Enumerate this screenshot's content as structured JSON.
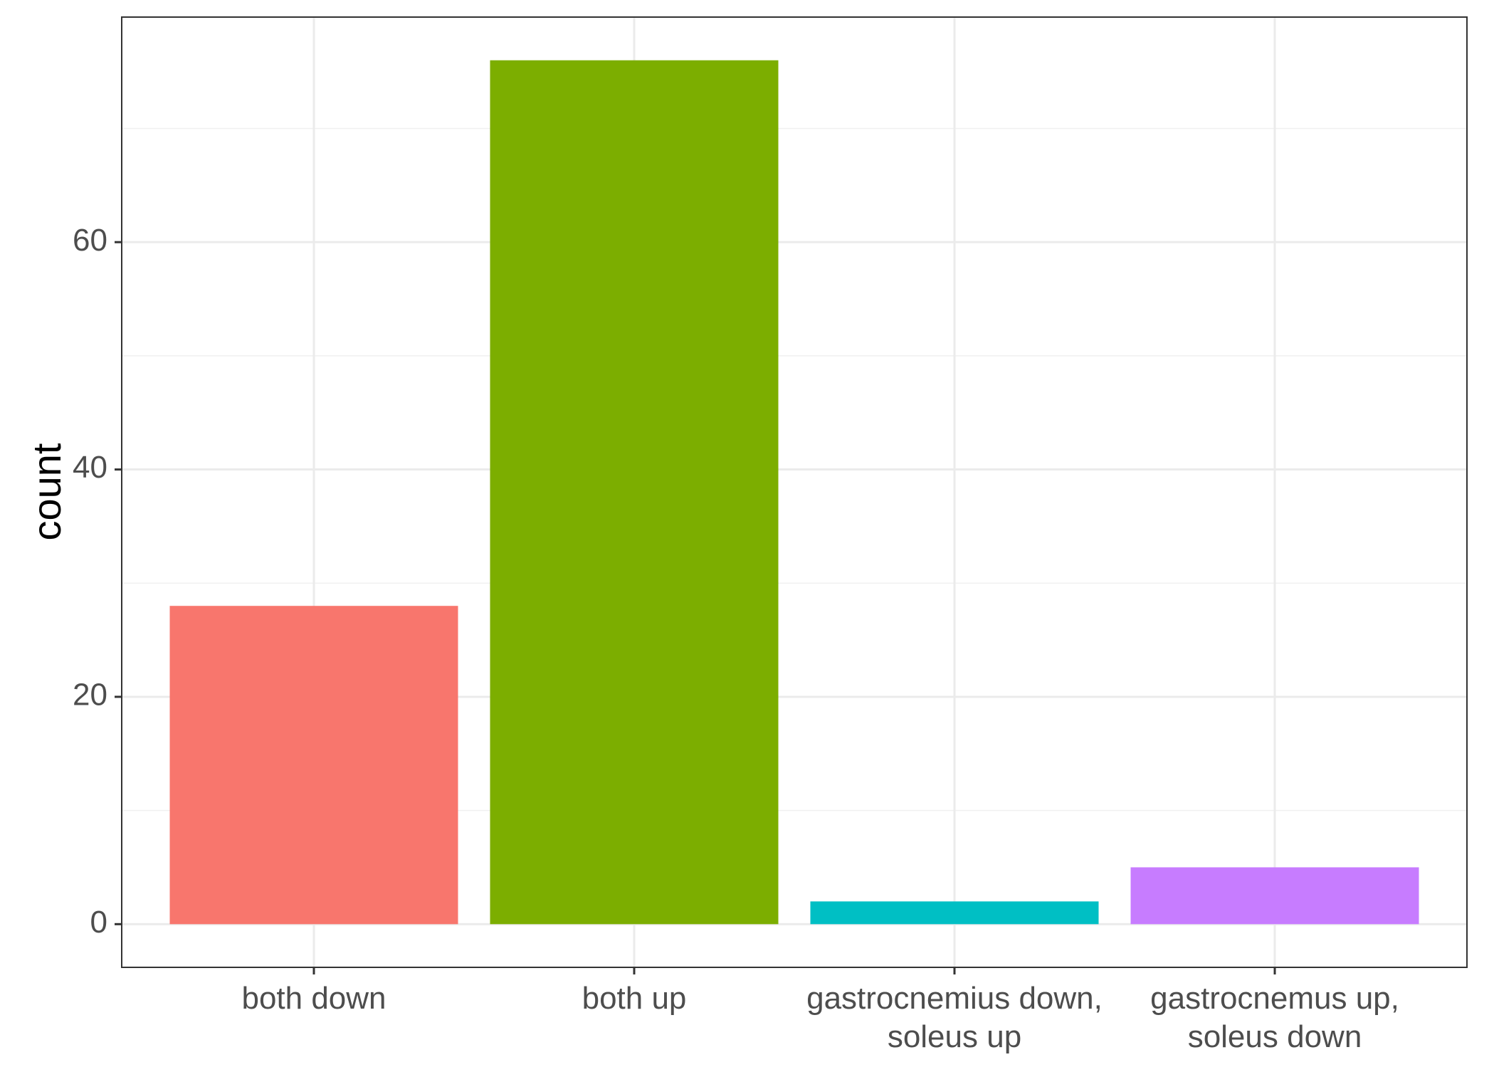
{
  "chart_data": {
    "type": "bar",
    "title": "",
    "xlabel": "",
    "ylabel": "count",
    "categories": [
      [
        "both down"
      ],
      [
        "both up"
      ],
      [
        "gastrocnemius down,",
        "soleus up"
      ],
      [
        "gastrocnemus up,",
        "soleus down"
      ]
    ],
    "values": [
      28,
      76,
      2,
      5
    ],
    "colors": [
      "#F8766D",
      "#7CAE00",
      "#00BFC4",
      "#C77CFF"
    ],
    "ylim": [
      -3.8,
      79.8
    ],
    "yticks": [
      0,
      20,
      40,
      60
    ],
    "yminor": [
      10,
      30,
      50,
      70
    ],
    "grid": true,
    "legend": "none"
  }
}
